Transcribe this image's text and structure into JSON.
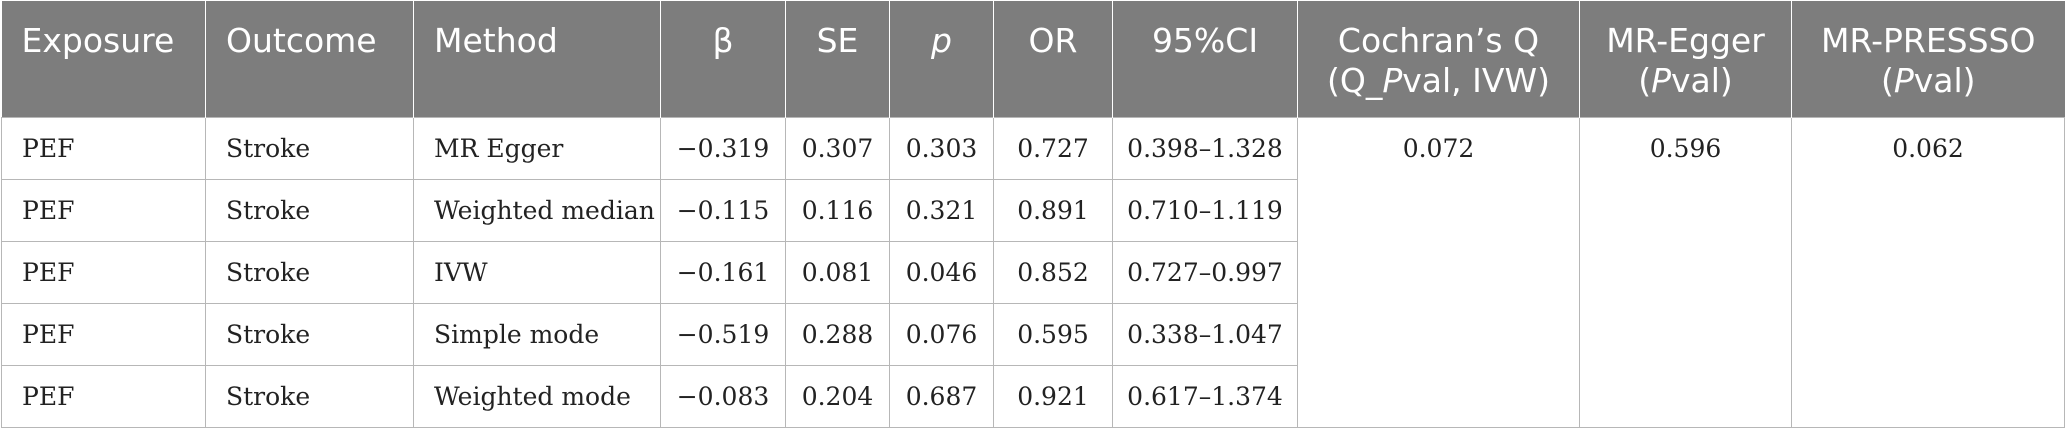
{
  "header": {
    "exposure": "Exposure",
    "outcome": "Outcome",
    "method": "Method",
    "beta": "β",
    "se": "SE",
    "p": "p",
    "or": "OR",
    "ci": "95%CI",
    "cochran_line1": "Cochran’s Q",
    "cochran_open": "(Q_",
    "cochran_p": "P",
    "cochran_rest": "val, IVW)",
    "egger_line1": "MR-Egger",
    "egger_open": "(",
    "egger_p": "P",
    "egger_rest": "val)",
    "presso_line1": "MR-PRESSSO",
    "presso_open": "(",
    "presso_p": "P",
    "presso_rest": "val)"
  },
  "rows": [
    {
      "exposure": "PEF",
      "outcome": "Stroke",
      "method": "MR Egger",
      "beta": "−0.319",
      "se": "0.307",
      "p": "0.303",
      "or": "0.727",
      "ci": "0.398–1.328"
    },
    {
      "exposure": "PEF",
      "outcome": "Stroke",
      "method": "Weighted median",
      "beta": "−0.115",
      "se": "0.116",
      "p": "0.321",
      "or": "0.891",
      "ci": "0.710–1.119"
    },
    {
      "exposure": "PEF",
      "outcome": "Stroke",
      "method": "IVW",
      "beta": "−0.161",
      "se": "0.081",
      "p": "0.046",
      "or": "0.852",
      "ci": "0.727–0.997"
    },
    {
      "exposure": "PEF",
      "outcome": "Stroke",
      "method": "Simple mode",
      "beta": "−0.519",
      "se": "0.288",
      "p": "0.076",
      "or": "0.595",
      "ci": "0.338–1.047"
    },
    {
      "exposure": "PEF",
      "outcome": "Stroke",
      "method": "Weighted mode",
      "beta": "−0.083",
      "se": "0.204",
      "p": "0.687",
      "or": "0.921",
      "ci": "0.617–1.374"
    }
  ],
  "summary": {
    "cochran_q": "0.072",
    "mr_egger": "0.596",
    "mr_presso": "0.062"
  }
}
